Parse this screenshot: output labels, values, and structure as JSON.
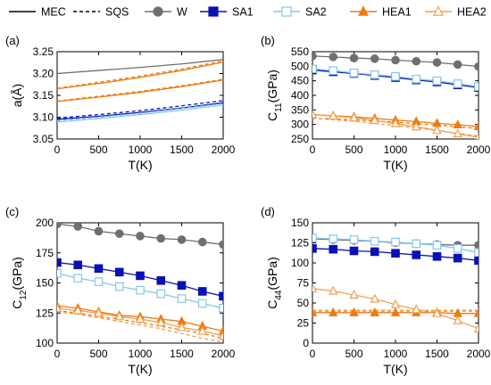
{
  "legend": {
    "items": [
      {
        "label": "MEC",
        "kind": "line",
        "dash": false,
        "color": "#000000",
        "marker": "none"
      },
      {
        "label": "SQS",
        "kind": "line",
        "dash": true,
        "color": "#000000",
        "marker": "none"
      },
      {
        "label": "W",
        "kind": "series",
        "dash": false,
        "color": "#6f6f6f",
        "marker": "circle",
        "filled": true
      },
      {
        "label": "SA1",
        "kind": "series",
        "dash": false,
        "color": "#0a10b4",
        "marker": "square",
        "filled": true
      },
      {
        "label": "SA2",
        "kind": "series",
        "dash": false,
        "color": "#86c8e8",
        "marker": "square",
        "filled": false
      },
      {
        "label": "HEA1",
        "kind": "series",
        "dash": false,
        "color": "#ee7b10",
        "marker": "triangle",
        "filled": true
      },
      {
        "label": "HEA2",
        "kind": "series",
        "dash": false,
        "color": "#f0a050",
        "marker": "triangle",
        "filled": false
      }
    ]
  },
  "chart_data": [
    {
      "type": "line",
      "panel_label": "(a)",
      "xlabel": "T(K)",
      "ylabel": "a(Å)",
      "xlim": [
        0,
        2000
      ],
      "ylim": [
        3.05,
        3.25
      ],
      "xticks": [
        "0",
        "500",
        "1000",
        "1500",
        "2000"
      ],
      "yticks": [
        "3.05",
        "3.10",
        "3.15",
        "3.20",
        "3.25"
      ],
      "grid": false,
      "markers": false,
      "x": [
        0,
        500,
        1000,
        1500,
        2000
      ],
      "series": [
        {
          "name": "W",
          "style": "MEC",
          "color": "#6f6f6f",
          "values": [
            3.2,
            3.207,
            3.214,
            3.222,
            3.232
          ]
        },
        {
          "name": "HEA2",
          "style": "MEC",
          "color": "#ee7b10",
          "values": [
            3.165,
            3.177,
            3.191,
            3.207,
            3.226
          ]
        },
        {
          "name": "HEA2",
          "style": "SQS",
          "color": "#ee7b10",
          "values": [
            3.166,
            3.18,
            3.194,
            3.21,
            3.229
          ]
        },
        {
          "name": "HEA1",
          "style": "MEC",
          "color": "#ee7b10",
          "values": [
            3.136,
            3.146,
            3.157,
            3.17,
            3.185
          ]
        },
        {
          "name": "HEA1",
          "style": "SQS",
          "color": "#ee7b10",
          "values": [
            3.137,
            3.148,
            3.159,
            3.172,
            3.187
          ]
        },
        {
          "name": "SA1",
          "style": "MEC",
          "color": "#0a10b4",
          "values": [
            3.095,
            3.102,
            3.111,
            3.121,
            3.133
          ]
        },
        {
          "name": "SA1",
          "style": "SQS",
          "color": "#0a10b4",
          "values": [
            3.098,
            3.106,
            3.115,
            3.126,
            3.138
          ]
        },
        {
          "name": "SA2",
          "style": "MEC",
          "color": "#86c8e8",
          "values": [
            3.089,
            3.097,
            3.106,
            3.116,
            3.128
          ]
        },
        {
          "name": "SA2",
          "style": "SQS",
          "color": "#86c8e8",
          "values": [
            3.092,
            3.1,
            3.109,
            3.12,
            3.131
          ]
        }
      ]
    },
    {
      "type": "line",
      "panel_label": "(b)",
      "xlabel": "T(K)",
      "ylabel_main": "C",
      "ylabel_sub": "11",
      "ylabel_unit": "(GPa)",
      "xlim": [
        0,
        2000
      ],
      "ylim": [
        250,
        550
      ],
      "xticks": [
        "0",
        "500",
        "1000",
        "1500",
        "2000"
      ],
      "yticks": [
        "250",
        "300",
        "350",
        "400",
        "450",
        "500",
        "550"
      ],
      "grid": false,
      "markers": true,
      "x": [
        0,
        250,
        500,
        750,
        1000,
        1250,
        1500,
        1750,
        2000
      ],
      "series": [
        {
          "name": "W",
          "color": "#6f6f6f",
          "marker": "circle",
          "filled": true,
          "values": [
            535,
            532,
            528,
            526,
            521,
            517,
            513,
            506,
            499
          ]
        },
        {
          "name": "SA1",
          "color": "#0a10b4",
          "marker": "square",
          "filled": true,
          "values": [
            487,
            481,
            475,
            468,
            461,
            453,
            446,
            436,
            427
          ]
        },
        {
          "name": "SA2",
          "color": "#86c8e8",
          "marker": "square",
          "filled": false,
          "values": [
            491,
            485,
            477,
            471,
            465,
            456,
            450,
            440,
            430
          ]
        },
        {
          "name": "HEA1",
          "color": "#ee7b10",
          "marker": "triangle",
          "filled": true,
          "values": [
            334,
            330,
            326,
            321,
            315,
            310,
            304,
            299,
            293
          ]
        },
        {
          "name": "HEA2",
          "color": "#f0a050",
          "marker": "triangle",
          "filled": false,
          "values": [
            334,
            329,
            323,
            314,
            303,
            292,
            280,
            268,
            256
          ]
        }
      ],
      "sqs_lines": [
        {
          "name": "HEA1",
          "color": "#ee7b10",
          "values": [
            321,
            319,
            316,
            312,
            308,
            303,
            298,
            292,
            286
          ]
        },
        {
          "name": "HEA2",
          "color": "#f0a050",
          "values": [
            321,
            316,
            311,
            304,
            296,
            288,
            279,
            270,
            260
          ]
        }
      ]
    },
    {
      "type": "line",
      "panel_label": "(c)",
      "xlabel": "T(K)",
      "ylabel_main": "C",
      "ylabel_sub": "12",
      "ylabel_unit": "(GPa)",
      "xlim": [
        0,
        2000
      ],
      "ylim": [
        100,
        200
      ],
      "xticks": [
        "0",
        "500",
        "1000",
        "1500",
        "2000"
      ],
      "yticks": [
        "100",
        "125",
        "150",
        "175",
        "200"
      ],
      "grid": false,
      "markers": true,
      "x": [
        0,
        250,
        500,
        750,
        1000,
        1250,
        1500,
        1750,
        2000
      ],
      "series": [
        {
          "name": "W",
          "color": "#6f6f6f",
          "marker": "circle",
          "filled": true,
          "values": [
            199,
            197,
            193,
            191,
            189,
            187,
            186,
            184,
            182
          ]
        },
        {
          "name": "SA1",
          "color": "#0a10b4",
          "marker": "square",
          "filled": true,
          "values": [
            167,
            165,
            162,
            159,
            156,
            152,
            148,
            143,
            139
          ]
        },
        {
          "name": "SA2",
          "color": "#86c8e8",
          "marker": "square",
          "filled": false,
          "values": [
            158,
            154,
            151,
            147,
            144,
            141,
            137,
            133,
            129
          ]
        },
        {
          "name": "HEA1",
          "color": "#ee7b10",
          "marker": "triangle",
          "filled": true,
          "values": [
            131,
            129,
            126,
            123,
            122,
            120,
            118,
            114,
            110
          ]
        },
        {
          "name": "HEA2",
          "color": "#f0a050",
          "marker": "triangle",
          "filled": false,
          "values": [
            129,
            127,
            125,
            122,
            120,
            117,
            113,
            110,
            106
          ]
        }
      ],
      "sqs_lines": [
        {
          "name": "HEA1",
          "color": "#ee7b10",
          "values": [
            127,
            125,
            122,
            120,
            117,
            114,
            111,
            108,
            104
          ]
        },
        {
          "name": "HEA2",
          "color": "#f0a050",
          "values": [
            126,
            124,
            121,
            118,
            115,
            112,
            108,
            104,
            101
          ]
        }
      ]
    },
    {
      "type": "line",
      "panel_label": "(d)",
      "xlabel": "T(K)",
      "ylabel_main": "C",
      "ylabel_sub": "44",
      "ylabel_unit": "(GPa)",
      "xlim": [
        0,
        2000
      ],
      "ylim": [
        0,
        150
      ],
      "xticks": [
        "0",
        "500",
        "1000",
        "1500",
        "2000"
      ],
      "yticks": [
        "0",
        "25",
        "50",
        "75",
        "100",
        "125",
        "150"
      ],
      "grid": false,
      "markers": true,
      "x": [
        0,
        250,
        500,
        750,
        1000,
        1250,
        1500,
        1750,
        2000
      ],
      "series": [
        {
          "name": "W",
          "color": "#6f6f6f",
          "marker": "circle",
          "filled": true,
          "values": [
            130,
            129,
            128,
            127,
            125,
            124,
            123,
            122,
            122
          ]
        },
        {
          "name": "SA1",
          "color": "#0a10b4",
          "marker": "square",
          "filled": true,
          "values": [
            118,
            117,
            115,
            114,
            112,
            110,
            108,
            106,
            103
          ]
        },
        {
          "name": "SA2",
          "color": "#86c8e8",
          "marker": "square",
          "filled": false,
          "values": [
            131,
            130,
            129,
            127,
            126,
            124,
            122,
            118,
            113
          ]
        },
        {
          "name": "HEA1",
          "color": "#ee7b10",
          "marker": "triangle",
          "filled": true,
          "values": [
            38,
            38,
            38,
            38,
            38,
            38,
            38,
            37,
            37
          ]
        },
        {
          "name": "HEA2",
          "color": "#f0a050",
          "marker": "triangle",
          "filled": false,
          "values": [
            68,
            65,
            60,
            55,
            48,
            42,
            37,
            28,
            18
          ]
        }
      ],
      "sqs_lines": [
        {
          "name": "HEA1",
          "color": "#ee7b10",
          "values": [
            40,
            40,
            40,
            40,
            40,
            40,
            40,
            40,
            40
          ]
        },
        {
          "name": "HEA2",
          "color": "#f0a050",
          "values": [
            41,
            41,
            41,
            41,
            41,
            41,
            41,
            41,
            41
          ]
        }
      ]
    }
  ]
}
